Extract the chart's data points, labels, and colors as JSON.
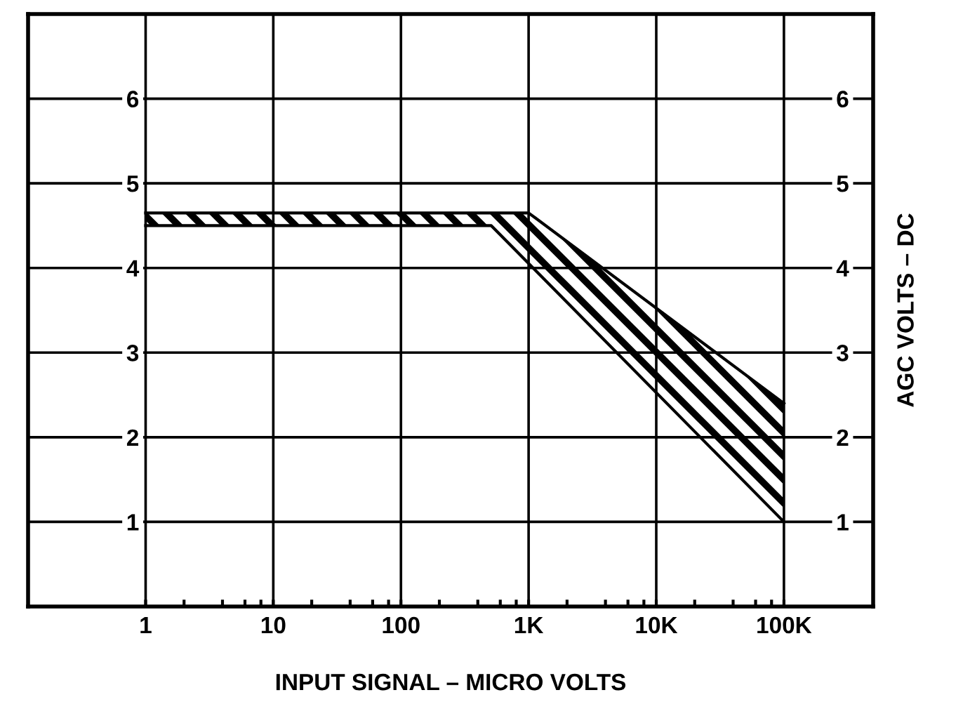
{
  "chart_data": {
    "type": "line",
    "xlabel": "INPUT SIGNAL – MICRO VOLTS",
    "y2label": "AGC VOLTS – DC",
    "log": "x",
    "xlim": [
      0.12,
      500000
    ],
    "xticks": [
      1,
      {
        "value": 2,
        "label": null
      },
      {
        "value": 4,
        "label": null
      },
      {
        "value": 6,
        "label": null
      },
      {
        "value": 8,
        "label": null
      },
      10,
      {
        "value": 20,
        "label": null
      },
      {
        "value": 40,
        "label": null
      },
      {
        "value": 60,
        "label": null
      },
      {
        "value": 80,
        "label": null
      },
      100,
      {
        "value": 200,
        "label": null
      },
      {
        "value": 400,
        "label": null
      },
      {
        "value": 600,
        "label": null
      },
      {
        "value": 800,
        "label": null
      },
      {
        "value": 1000,
        "label": "1K"
      },
      {
        "value": 2000,
        "label": null
      },
      {
        "value": 4000,
        "label": null
      },
      {
        "value": 6000,
        "label": null
      },
      {
        "value": 8000,
        "label": null
      },
      {
        "value": 10000,
        "label": "10K"
      },
      {
        "value": 20000,
        "label": null
      },
      {
        "value": 40000,
        "label": null
      },
      {
        "value": 60000,
        "label": null
      },
      {
        "value": 80000,
        "label": null
      },
      {
        "value": 100000,
        "label": "100K"
      }
    ],
    "ylim": [
      0,
      7
    ],
    "yticks": [
      1,
      2,
      3,
      4,
      5,
      6
    ],
    "y2lim": [
      0,
      7
    ],
    "y2ticks": [
      1,
      2,
      3,
      4,
      5,
      6
    ],
    "grid": true,
    "series": [
      {
        "color": "#000000",
        "x": [
          1,
          1000,
          100000
        ],
        "values": [
          4.65,
          4.65,
          2.4
        ]
      },
      {
        "color": "#000000",
        "x": [
          1,
          510,
          100000
        ],
        "values": [
          4.5,
          4.5,
          1.0
        ]
      }
    ]
  }
}
